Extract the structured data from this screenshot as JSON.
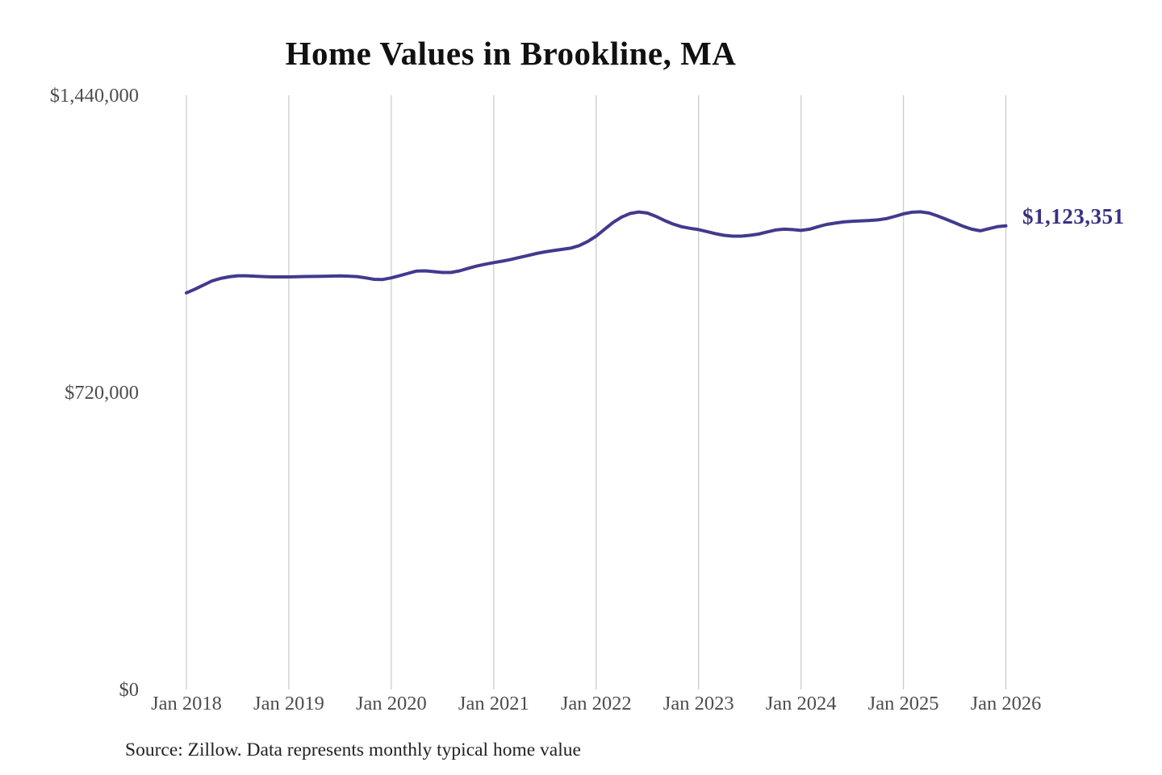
{
  "chart": {
    "title": "Home Values in Brookline, MA",
    "latest_value_label": "$1,123,351",
    "source": "Source: Zillow. Data represents monthly typical home value"
  },
  "colors": {
    "line": "#423a8e",
    "latest_value_label": "#3a3183",
    "gridline": "#cccccc",
    "axis_text": "#4d4d4d",
    "title_text": "#111111",
    "source_text": "#222222",
    "background": "#ffffff"
  },
  "chart_data": {
    "type": "line",
    "title": "Home Values in Brookline, MA",
    "series_name": "Monthly typical home value",
    "interval": "monthly",
    "x_start": "Jan 2018",
    "x_end": "Jan 2026",
    "x_tick_labels": [
      "Jan 2018",
      "Jan 2019",
      "Jan 2020",
      "Jan 2021",
      "Jan 2022",
      "Jan 2023",
      "Jan 2024",
      "Jan 2025",
      "Jan 2026"
    ],
    "y_ticks": [
      {
        "label": "$0",
        "value": 0
      },
      {
        "label": "$720,000",
        "value": 720000
      },
      {
        "label": "$1,440,000",
        "value": 1440000
      }
    ],
    "ylim": [
      0,
      1440000
    ],
    "grid": "vertical",
    "legend": "none",
    "last_point_label": "$1,123,351",
    "last_point_value": 1123351,
    "values": [
      961000,
      970000,
      980000,
      990000,
      996000,
      1000000,
      1002500,
      1002500,
      1001500,
      1000500,
      999800,
      999800,
      999800,
      1000300,
      1000800,
      1001000,
      1001300,
      1001800,
      1002200,
      1001500,
      1000500,
      997500,
      994000,
      993500,
      997500,
      1003000,
      1008500,
      1014000,
      1014500,
      1012500,
      1010500,
      1010500,
      1014500,
      1020500,
      1026000,
      1030500,
      1034500,
      1038000,
      1042000,
      1047000,
      1051500,
      1056500,
      1060500,
      1063500,
      1066500,
      1069500,
      1075500,
      1085500,
      1098500,
      1115500,
      1132000,
      1145000,
      1153500,
      1157000,
      1154500,
      1146500,
      1136500,
      1128000,
      1121500,
      1117500,
      1114500,
      1109500,
      1104500,
      1100500,
      1098500,
      1098500,
      1100500,
      1103500,
      1108500,
      1113500,
      1115500,
      1114500,
      1112500,
      1115500,
      1121500,
      1127000,
      1130000,
      1133000,
      1134500,
      1135500,
      1136500,
      1138000,
      1141000,
      1146500,
      1152500,
      1156500,
      1157500,
      1154500,
      1147500,
      1139500,
      1131000,
      1122500,
      1115500,
      1111500,
      1116500,
      1121500,
      1123351
    ]
  }
}
